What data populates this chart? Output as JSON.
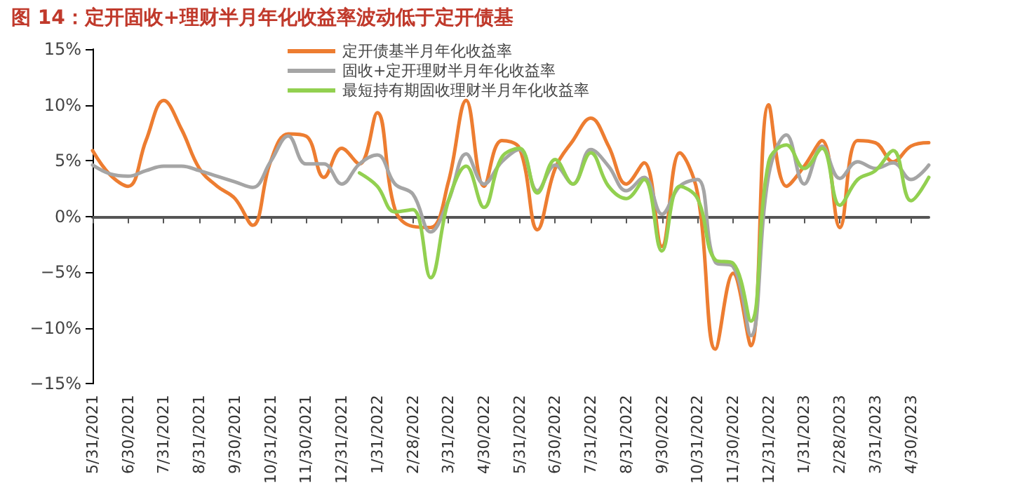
{
  "chart_data": {
    "type": "line",
    "title": "图 14：定开固收+理财半月年化收益率波动低于定开债基",
    "categories": [
      "5/31/2021",
      null,
      "6/30/2021",
      null,
      "7/31/2021",
      null,
      "8/31/2021",
      null,
      "9/30/2021",
      null,
      "10/31/2021",
      null,
      "11/30/2021",
      null,
      "12/31/2021",
      null,
      "1/31/2022",
      null,
      "2/28/2022",
      null,
      "3/31/2022",
      null,
      "4/30/2022",
      null,
      "5/31/2022",
      null,
      "6/30/2022",
      null,
      "7/31/2022",
      null,
      "8/31/2022",
      null,
      "9/30/2022",
      null,
      "10/31/2022",
      null,
      "11/30/2022",
      null,
      "12/31/2022",
      null,
      "1/31/2023",
      null,
      "2/28/2023",
      null,
      "3/31/2023",
      null,
      "4/30/2023",
      null
    ],
    "series": [
      {
        "name": "定开债基半月年化收益率",
        "color": "#ed7d31",
        "values": [
          5.9,
          3.7,
          2.7,
          6.8,
          10.4,
          7.8,
          4.3,
          2.7,
          1.6,
          -0.8,
          4.9,
          7.4,
          7.2,
          3.5,
          6.1,
          4.7,
          9.3,
          0.6,
          -0.9,
          -1.0,
          3.1,
          10.4,
          2.7,
          6.8,
          6.1,
          -1.2,
          4.3,
          6.8,
          8.8,
          6.3,
          2.9,
          4.8,
          -2.7,
          5.7,
          2.1,
          -11.9,
          -5.1,
          -11.6,
          10.0,
          2.7,
          4.5,
          6.8,
          -1.0,
          6.8,
          6.6,
          4.9,
          6.3,
          6.6
        ]
      },
      {
        "name": "固收+定开理财半月年化收益率",
        "color": "#a5a5a5",
        "values": [
          4.6,
          3.8,
          3.6,
          4.1,
          4.5,
          4.5,
          4.1,
          3.6,
          3.1,
          2.6,
          4.9,
          7.2,
          4.7,
          4.7,
          2.9,
          4.7,
          5.5,
          2.9,
          2.0,
          -1.4,
          1.4,
          5.6,
          2.9,
          4.9,
          6.0,
          2.3,
          4.6,
          2.9,
          6.0,
          4.5,
          2.3,
          3.5,
          0.2,
          2.7,
          3.3,
          -4.1,
          -4.5,
          -10.7,
          3.7,
          7.3,
          2.9,
          6.3,
          3.4,
          4.9,
          4.3,
          4.8,
          3.3,
          4.6
        ]
      },
      {
        "name": "最短持有期固收理财半月年化收益率",
        "color": "#92d050",
        "values": [
          null,
          null,
          null,
          null,
          null,
          null,
          null,
          null,
          null,
          null,
          null,
          null,
          null,
          null,
          null,
          3.9,
          2.7,
          0.4,
          0.6,
          -5.5,
          1.4,
          4.5,
          0.8,
          5.3,
          6.1,
          2.1,
          5.1,
          2.9,
          5.7,
          2.7,
          1.6,
          3.3,
          -3.1,
          2.7,
          1.6,
          -3.9,
          -4.2,
          -9.4,
          4.9,
          6.4,
          4.3,
          6.1,
          1.0,
          3.3,
          4.1,
          5.9,
          1.4,
          3.5
        ]
      }
    ],
    "ylim": [
      -15,
      15
    ],
    "yticks": [
      {
        "value": -15,
        "label": "−15%"
      },
      {
        "value": -10,
        "label": "−10%"
      },
      {
        "value": -5,
        "label": "−5%"
      },
      {
        "value": 0,
        "label": "0%"
      },
      {
        "value": 5,
        "label": "5%"
      },
      {
        "value": 10,
        "label": "10%"
      },
      {
        "value": 15,
        "label": "15%"
      }
    ],
    "legend": "top",
    "marker": "none",
    "line_style": "solid"
  }
}
